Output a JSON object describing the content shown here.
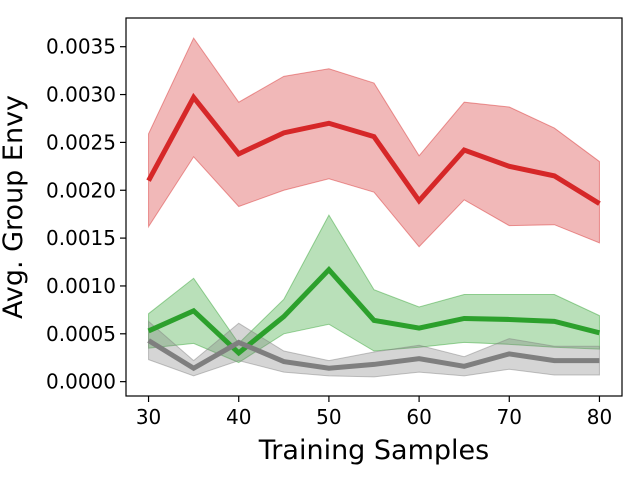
{
  "chart_data": {
    "type": "line",
    "title": "",
    "xlabel": "Training Samples",
    "ylabel": "Avg. Group Envy",
    "x": [
      30,
      35,
      40,
      45,
      50,
      55,
      60,
      65,
      70,
      75,
      80
    ],
    "xlim": [
      27.5,
      82.5
    ],
    "ylim": [
      -0.00015,
      0.0038
    ],
    "xticks": [
      30,
      40,
      50,
      60,
      70,
      80
    ],
    "yticks": [
      0.0,
      0.0005,
      0.001,
      0.0015,
      0.002,
      0.0025,
      0.003,
      0.0035
    ],
    "ytick_labels": [
      "0.0000",
      "0.0005",
      "0.0010",
      "0.0015",
      "0.0020",
      "0.0025",
      "0.0030",
      "0.0035"
    ],
    "grid": false,
    "legend": "none",
    "series": [
      {
        "color": "#d62728",
        "values": [
          0.0021,
          0.00297,
          0.00238,
          0.0026,
          0.0027,
          0.00256,
          0.00189,
          0.00242,
          0.00225,
          0.00215,
          0.00186
        ],
        "lower": [
          0.00162,
          0.00235,
          0.00183,
          0.002,
          0.00212,
          0.00198,
          0.00141,
          0.0019,
          0.00163,
          0.00164,
          0.00145
        ],
        "upper": [
          0.00259,
          0.00359,
          0.00292,
          0.00319,
          0.00327,
          0.00312,
          0.00236,
          0.00292,
          0.00287,
          0.00265,
          0.0023
        ]
      },
      {
        "color": "#2ca02c",
        "values": [
          0.00053,
          0.00074,
          0.0003,
          0.00068,
          0.00117,
          0.00064,
          0.00056,
          0.00066,
          0.00065,
          0.00063,
          0.00051
        ],
        "lower": [
          0.00035,
          0.0004,
          0.0002,
          0.0005,
          0.0006,
          0.00032,
          0.00036,
          0.00041,
          0.00039,
          0.00036,
          0.00034
        ],
        "upper": [
          0.00071,
          0.00108,
          0.0004,
          0.00086,
          0.00174,
          0.00096,
          0.00078,
          0.00091,
          0.00091,
          0.00091,
          0.00069
        ]
      },
      {
        "color": "#7f7f7f",
        "values": [
          0.00043,
          0.00014,
          0.00041,
          0.00021,
          0.00014,
          0.00018,
          0.00024,
          0.00016,
          0.00029,
          0.00022,
          0.00022
        ],
        "lower": [
          0.00023,
          6e-05,
          0.00022,
          0.0001,
          6e-05,
          5e-05,
          0.0001,
          6e-05,
          0.00013,
          7e-05,
          7e-05
        ],
        "upper": [
          0.00063,
          0.00022,
          0.00061,
          0.00032,
          0.00022,
          0.00031,
          0.00038,
          0.00026,
          0.00045,
          0.00037,
          0.00037
        ]
      }
    ]
  }
}
